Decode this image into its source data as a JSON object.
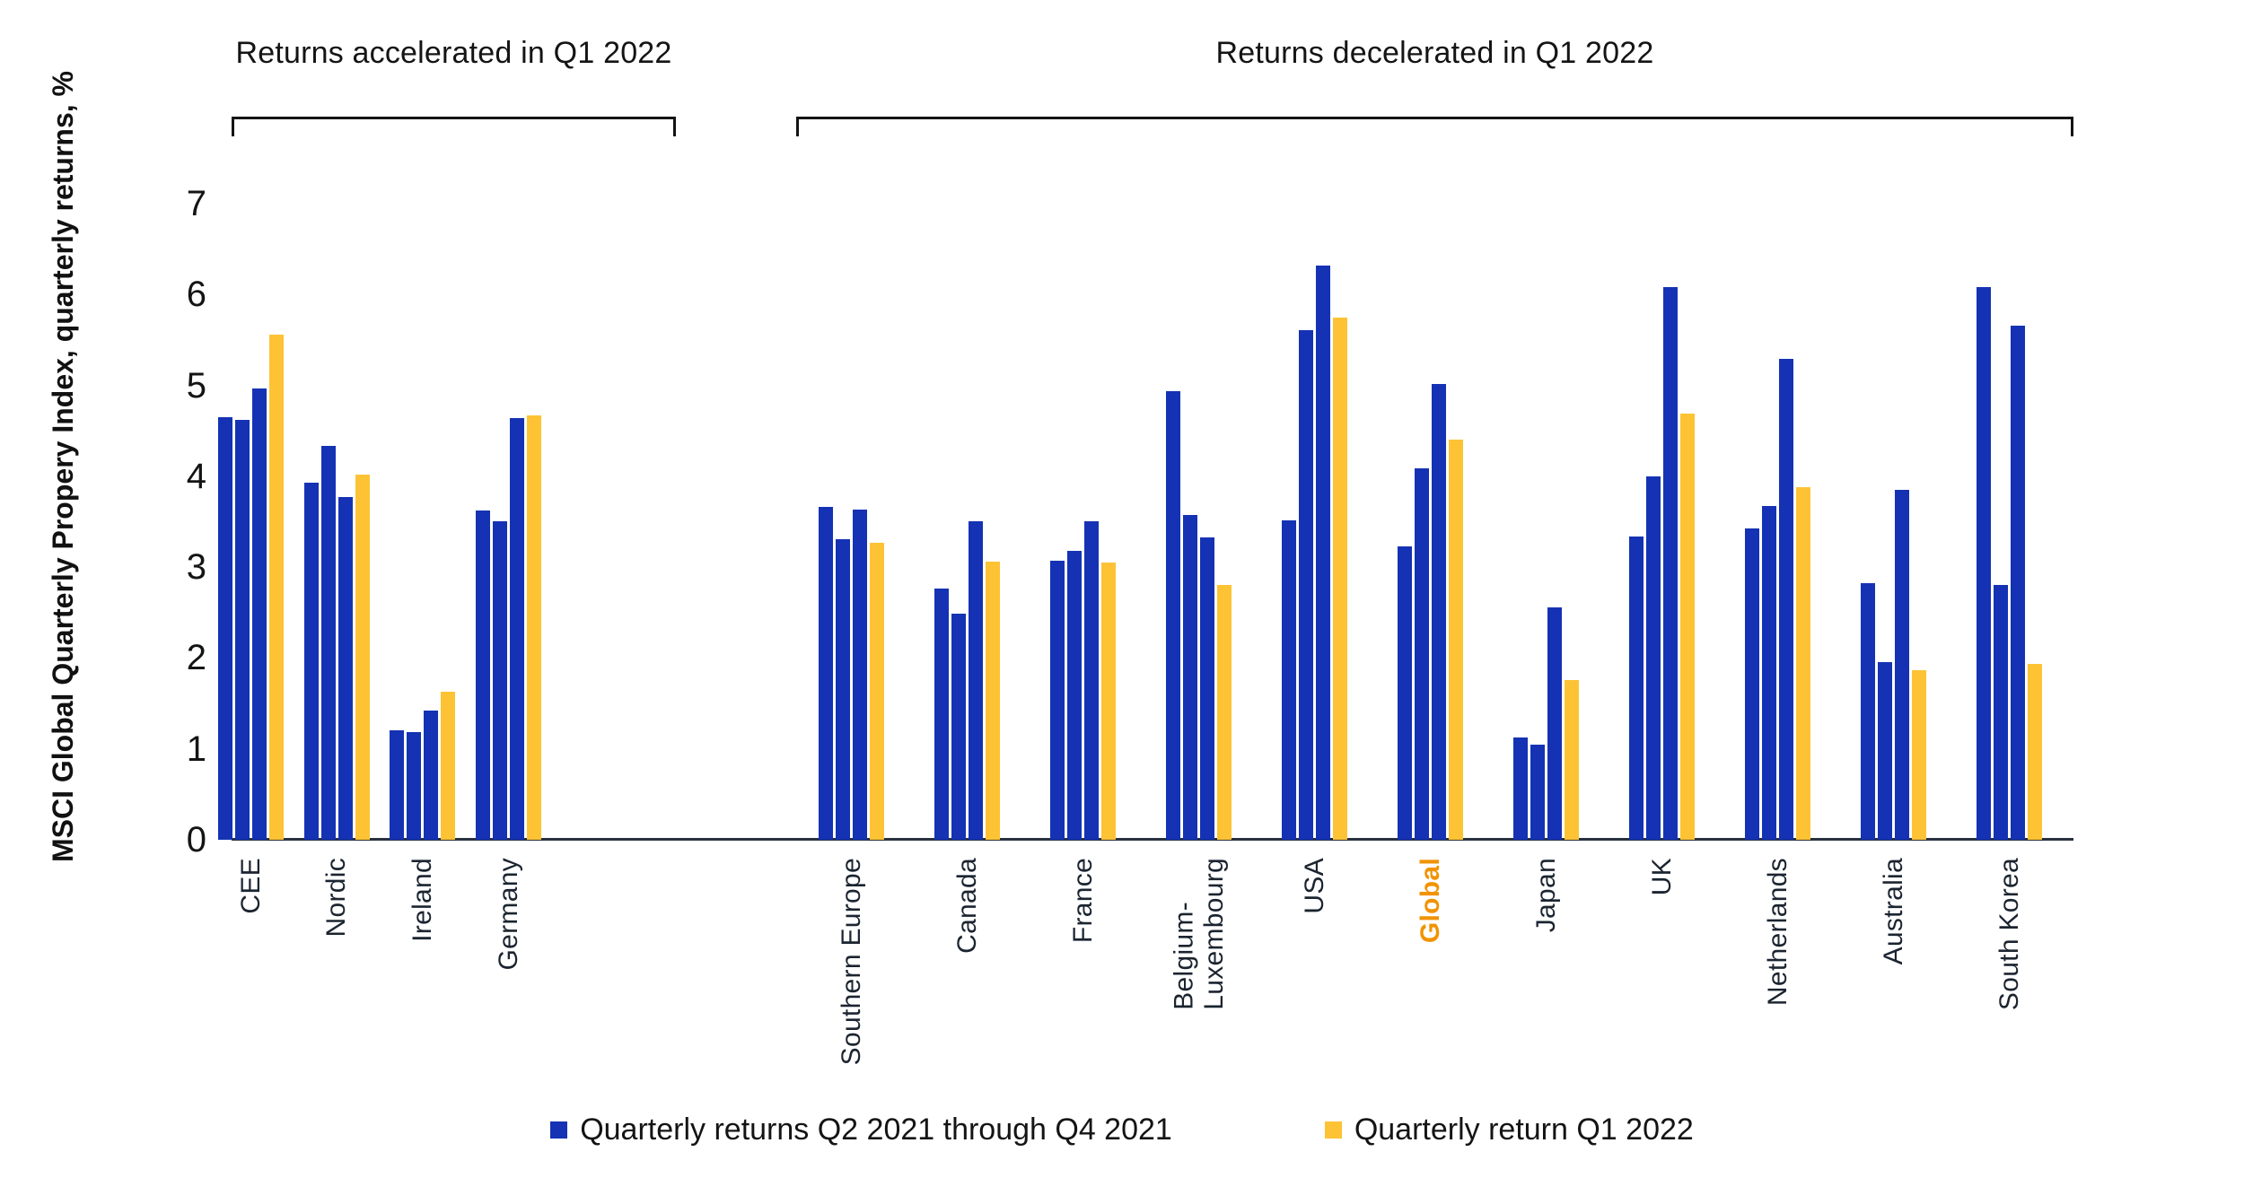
{
  "colors": {
    "bar_blue": "#1532B4",
    "bar_yellow": "#FDC335",
    "highlight_label": "#F19300",
    "text": "#141414",
    "axis": "#27313f"
  },
  "chart_data": {
    "type": "bar",
    "title": "",
    "ylabel": "MSCI Global Quarterly Propery Index, quarterly returns, %",
    "xlabel": "",
    "ylim": [
      0,
      7
    ],
    "yticks": [
      0,
      1,
      2,
      3,
      4,
      5,
      6,
      7
    ],
    "grid": false,
    "legend_position": "bottom-center",
    "sections": [
      {
        "id": "accelerated",
        "title": "Returns accelerated in Q1 2022"
      },
      {
        "id": "decelerated",
        "title": "Returns decelerated in Q1 2022"
      }
    ],
    "series": [
      {
        "name": "Quarterly returns Q2 2021 through Q4 2021",
        "color_key": "bar_blue",
        "bars_per_group": 3
      },
      {
        "name": "Quarterly return Q1 2022",
        "color_key": "bar_yellow",
        "bars_per_group": 1
      }
    ],
    "groups": [
      {
        "label": "CEE",
        "section": "accelerated",
        "highlight": false,
        "q2_q4_2021": [
          4.65,
          4.62,
          4.97
        ],
        "q1_2022": 5.56
      },
      {
        "label": "Nordic",
        "section": "accelerated",
        "highlight": false,
        "q2_q4_2021": [
          3.93,
          4.33,
          3.77
        ],
        "q1_2022": 4.02
      },
      {
        "label": "Ireland",
        "section": "accelerated",
        "highlight": false,
        "q2_q4_2021": [
          1.2,
          1.18,
          1.42
        ],
        "q1_2022": 1.63
      },
      {
        "label": "Germany",
        "section": "accelerated",
        "highlight": false,
        "q2_q4_2021": [
          3.62,
          3.5,
          4.64
        ],
        "q1_2022": 4.67
      },
      {
        "label": "Southern Europe",
        "section": "decelerated",
        "highlight": false,
        "q2_q4_2021": [
          3.66,
          3.31,
          3.63
        ],
        "q1_2022": 3.27
      },
      {
        "label": "Canada",
        "section": "decelerated",
        "highlight": false,
        "q2_q4_2021": [
          2.76,
          2.49,
          3.5
        ],
        "q1_2022": 3.06
      },
      {
        "label": "France",
        "section": "decelerated",
        "highlight": false,
        "q2_q4_2021": [
          3.07,
          3.18,
          3.5
        ],
        "q1_2022": 3.05
      },
      {
        "label": "Belgium-\nLuxembourg",
        "section": "decelerated",
        "highlight": false,
        "q2_q4_2021": [
          4.94,
          3.57,
          3.33
        ],
        "q1_2022": 2.8
      },
      {
        "label": "USA",
        "section": "decelerated",
        "highlight": false,
        "q2_q4_2021": [
          3.51,
          5.61,
          6.32
        ],
        "q1_2022": 5.75
      },
      {
        "label": "Global",
        "section": "decelerated",
        "highlight": true,
        "q2_q4_2021": [
          3.23,
          4.09,
          5.01
        ],
        "q1_2022": 4.4
      },
      {
        "label": "Japan",
        "section": "decelerated",
        "highlight": false,
        "q2_q4_2021": [
          1.13,
          1.05,
          2.56
        ],
        "q1_2022": 1.76
      },
      {
        "label": "UK",
        "section": "decelerated",
        "highlight": false,
        "q2_q4_2021": [
          3.34,
          4.0,
          6.08
        ],
        "q1_2022": 4.69
      },
      {
        "label": "Netherlands",
        "section": "decelerated",
        "highlight": false,
        "q2_q4_2021": [
          3.43,
          3.67,
          5.29
        ],
        "q1_2022": 3.88
      },
      {
        "label": "Australia",
        "section": "decelerated",
        "highlight": false,
        "q2_q4_2021": [
          2.82,
          1.95,
          3.85
        ],
        "q1_2022": 1.87
      },
      {
        "label": "South Korea",
        "section": "decelerated",
        "highlight": false,
        "q2_q4_2021": [
          6.08,
          2.8,
          5.66
        ],
        "q1_2022": 1.93
      }
    ]
  }
}
